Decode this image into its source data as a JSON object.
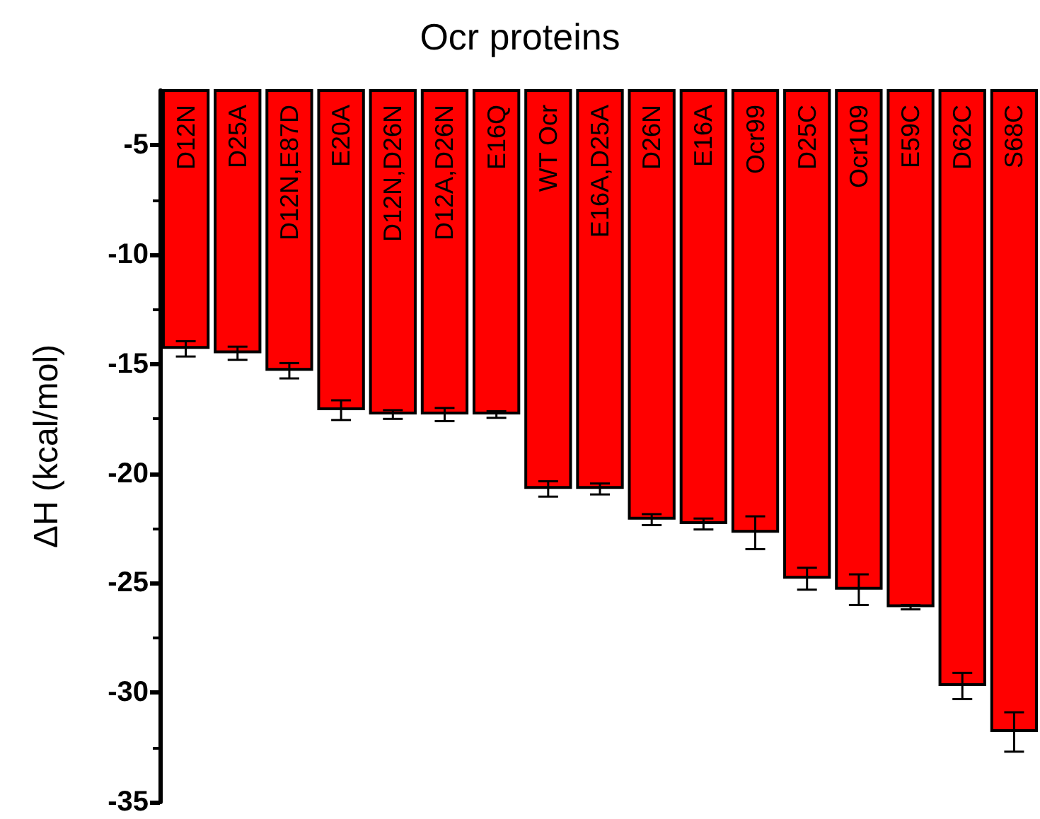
{
  "chart_data": {
    "type": "bar",
    "title": "Ocr proteins",
    "ylabel": "ΔH (kcal/mol)",
    "categories": [
      "D12N",
      "D25A",
      "D12N,E87D",
      "E20A",
      "D12N,D26N",
      "D12A,D26N",
      "E16Q",
      "WT Ocr",
      "E16A,D25A",
      "D26N",
      "E16A",
      "Ocr99",
      "D25C",
      "Ocr109",
      "E59C",
      "D62C",
      "S68C"
    ],
    "values": [
      -14.3,
      -14.5,
      -15.3,
      -17.1,
      -17.3,
      -17.3,
      -17.3,
      -20.7,
      -20.7,
      -22.1,
      -22.3,
      -22.7,
      -24.8,
      -25.3,
      -26.1,
      -29.7,
      -31.8
    ],
    "errors": [
      0.35,
      0.3,
      0.35,
      0.45,
      0.2,
      0.3,
      0.15,
      0.35,
      0.25,
      0.25,
      0.25,
      0.75,
      0.5,
      0.7,
      0.1,
      0.6,
      0.9
    ],
    "color": "#ff0000",
    "ylim": [
      -35,
      -2.5
    ],
    "yticks": [
      -35,
      -30,
      -25,
      -20,
      -15,
      -10,
      -5
    ],
    "grid": false
  }
}
